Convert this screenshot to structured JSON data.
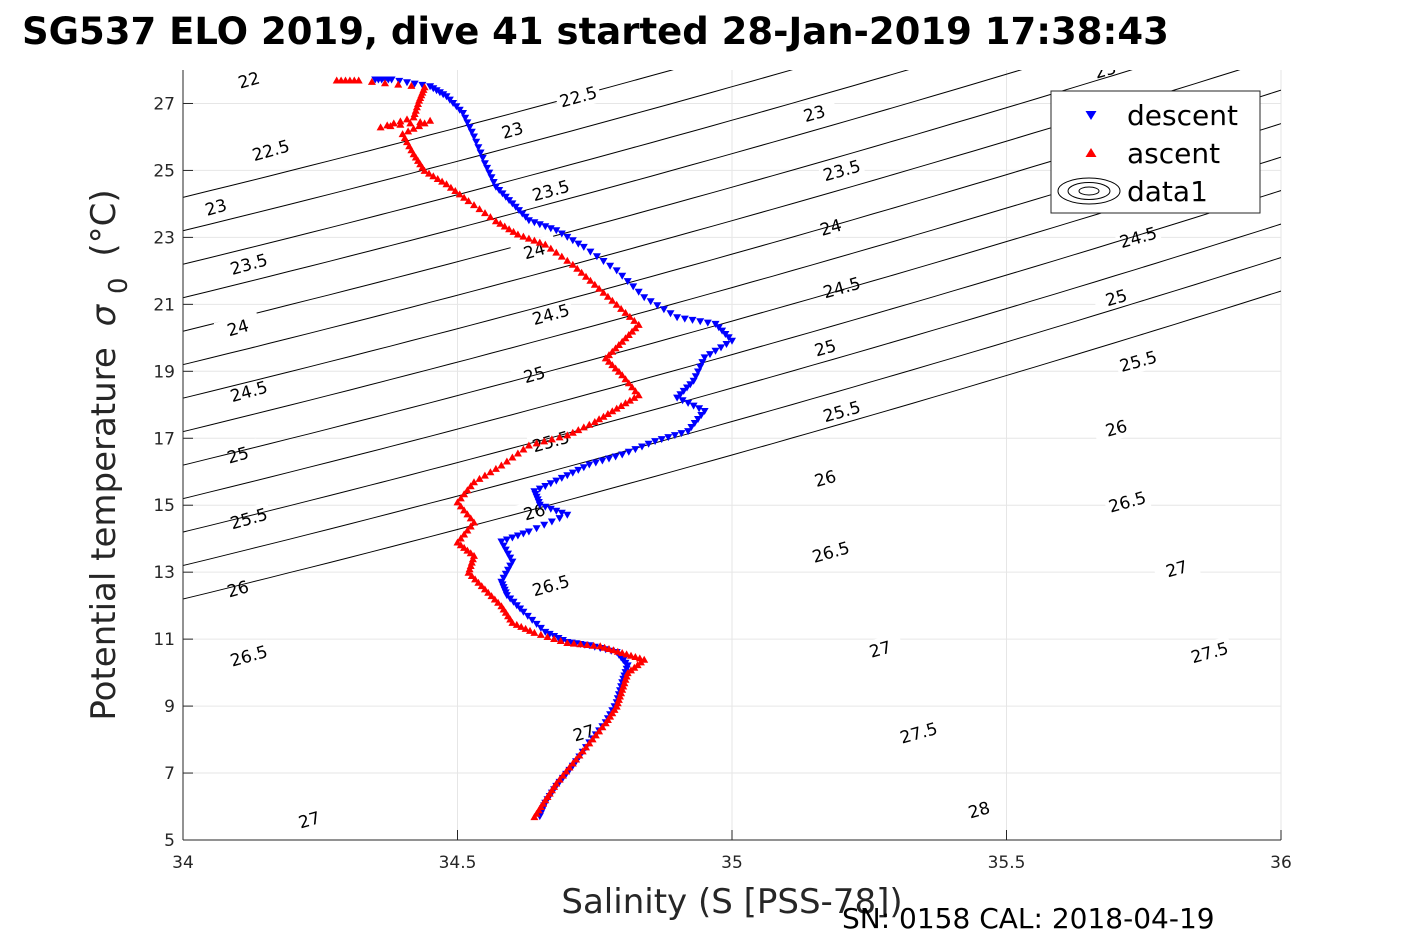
{
  "chart_data": {
    "type": "scatter",
    "title": "SG537 ELO 2019, dive 41 started 28-Jan-2019 17:38:43",
    "xlabel": "Salinity (S [PSS-78])",
    "ylabel": "Potential temperature",
    "ylabel_symbol": "σ",
    "ylabel_sub": "0",
    "ylabel_unit": "(°C)",
    "xlim": [
      34,
      36
    ],
    "ylim": [
      5,
      28
    ],
    "xticks": [
      34,
      34.5,
      35,
      35.5,
      36
    ],
    "xtick_labels": [
      "34",
      "34.5",
      "35",
      "35.5",
      "36"
    ],
    "yticks": [
      5,
      7,
      9,
      11,
      13,
      15,
      17,
      19,
      21,
      23,
      25,
      27
    ],
    "ytick_labels": [
      "5",
      "7",
      "9",
      "11",
      "13",
      "15",
      "17",
      "19",
      "21",
      "23",
      "25",
      "27"
    ],
    "grid": true,
    "legend_position": "top-right",
    "series": [
      {
        "name": "descent",
        "marker": "down-triangle",
        "color": "#0000ff",
        "points": [
          [
            34.35,
            27.7
          ],
          [
            34.38,
            27.7
          ],
          [
            34.45,
            27.5
          ],
          [
            34.48,
            27.2
          ],
          [
            34.51,
            26.7
          ],
          [
            34.53,
            26.0
          ],
          [
            34.55,
            25.2
          ],
          [
            34.57,
            24.5
          ],
          [
            34.6,
            24.0
          ],
          [
            34.63,
            23.5
          ],
          [
            34.68,
            23.2
          ],
          [
            34.73,
            22.7
          ],
          [
            34.79,
            22.0
          ],
          [
            34.84,
            21.2
          ],
          [
            34.9,
            20.6
          ],
          [
            34.97,
            20.4
          ],
          [
            35.0,
            19.9
          ],
          [
            34.95,
            19.4
          ],
          [
            34.93,
            18.7
          ],
          [
            34.9,
            18.2
          ],
          [
            34.95,
            17.8
          ],
          [
            34.92,
            17.2
          ],
          [
            34.86,
            16.9
          ],
          [
            34.8,
            16.5
          ],
          [
            34.74,
            16.2
          ],
          [
            34.69,
            15.8
          ],
          [
            34.64,
            15.4
          ],
          [
            34.65,
            15.0
          ],
          [
            34.7,
            14.7
          ],
          [
            34.63,
            14.2
          ],
          [
            34.58,
            13.9
          ],
          [
            34.6,
            13.3
          ],
          [
            34.58,
            12.7
          ],
          [
            34.59,
            12.3
          ],
          [
            34.62,
            11.8
          ],
          [
            34.66,
            11.2
          ],
          [
            34.7,
            10.9
          ],
          [
            34.74,
            10.8
          ],
          [
            34.79,
            10.6
          ],
          [
            34.81,
            10.2
          ],
          [
            34.8,
            9.7
          ],
          [
            34.79,
            9.1
          ],
          [
            34.77,
            8.5
          ],
          [
            34.74,
            7.9
          ],
          [
            34.71,
            7.2
          ],
          [
            34.68,
            6.6
          ],
          [
            34.66,
            6.1
          ],
          [
            34.65,
            5.7
          ]
        ]
      },
      {
        "name": "ascent",
        "marker": "up-triangle",
        "color": "#ff0000",
        "points": [
          [
            34.28,
            27.7
          ],
          [
            34.32,
            27.7
          ],
          [
            34.44,
            27.5
          ],
          [
            34.43,
            27.1
          ],
          [
            34.42,
            26.6
          ],
          [
            34.36,
            26.3
          ],
          [
            34.45,
            26.5
          ],
          [
            34.4,
            26.1
          ],
          [
            34.42,
            25.5
          ],
          [
            34.44,
            25.0
          ],
          [
            34.48,
            24.6
          ],
          [
            34.52,
            24.1
          ],
          [
            34.57,
            23.5
          ],
          [
            34.61,
            23.1
          ],
          [
            34.66,
            22.8
          ],
          [
            34.71,
            22.2
          ],
          [
            34.75,
            21.6
          ],
          [
            34.79,
            21.0
          ],
          [
            34.83,
            20.4
          ],
          [
            34.8,
            19.9
          ],
          [
            34.77,
            19.4
          ],
          [
            34.8,
            18.9
          ],
          [
            34.83,
            18.3
          ],
          [
            34.79,
            17.9
          ],
          [
            34.75,
            17.5
          ],
          [
            34.7,
            17.1
          ],
          [
            34.63,
            16.8
          ],
          [
            34.58,
            16.2
          ],
          [
            34.53,
            15.7
          ],
          [
            34.5,
            15.1
          ],
          [
            34.53,
            14.5
          ],
          [
            34.5,
            13.9
          ],
          [
            34.53,
            13.5
          ],
          [
            34.52,
            13.0
          ],
          [
            34.55,
            12.5
          ],
          [
            34.58,
            12.0
          ],
          [
            34.6,
            11.5
          ],
          [
            34.64,
            11.2
          ],
          [
            34.7,
            10.9
          ],
          [
            34.76,
            10.8
          ],
          [
            34.8,
            10.6
          ],
          [
            34.84,
            10.4
          ],
          [
            34.81,
            10.0
          ],
          [
            34.8,
            9.5
          ],
          [
            34.79,
            9.0
          ],
          [
            34.77,
            8.5
          ],
          [
            34.74,
            7.9
          ],
          [
            34.71,
            7.3
          ],
          [
            34.68,
            6.7
          ],
          [
            34.66,
            6.2
          ],
          [
            34.64,
            5.7
          ]
        ]
      }
    ],
    "contours": [
      {
        "level": "22",
        "m": 4.6,
        "b": -132.5,
        "labels": [
          [
            34.12,
            27.7
          ]
        ]
      },
      {
        "level": "22.5",
        "m": 4.6,
        "b": -133.5,
        "labels": [
          [
            34.16,
            25.6
          ],
          [
            34.72,
            27.2
          ]
        ]
      },
      {
        "level": "23",
        "m": 4.6,
        "b": -134.5,
        "labels": [
          [
            34.06,
            23.9
          ],
          [
            34.6,
            26.2
          ],
          [
            35.15,
            26.7
          ],
          [
            35.68,
            28.0
          ]
        ]
      },
      {
        "level": "23.5",
        "m": 4.6,
        "b": -135.5,
        "labels": [
          [
            34.12,
            22.2
          ],
          [
            34.67,
            24.4
          ],
          [
            35.2,
            25.0
          ]
        ]
      },
      {
        "level": "24",
        "m": 4.6,
        "b": -136.5,
        "labels": [
          [
            34.1,
            20.3
          ],
          [
            34.64,
            22.6
          ],
          [
            35.18,
            23.3
          ]
        ]
      },
      {
        "level": "24.5",
        "m": 4.6,
        "b": -137.5,
        "labels": [
          [
            34.12,
            18.4
          ],
          [
            34.67,
            20.7
          ],
          [
            35.2,
            21.5
          ],
          [
            35.74,
            23.0
          ]
        ]
      },
      {
        "level": "25",
        "m": 4.6,
        "b": -138.5,
        "labels": [
          [
            34.1,
            16.5
          ],
          [
            34.64,
            18.9
          ],
          [
            35.17,
            19.7
          ],
          [
            35.7,
            21.2
          ]
        ]
      },
      {
        "level": "25.5",
        "m": 4.6,
        "b": -139.5,
        "labels": [
          [
            34.12,
            14.6
          ],
          [
            34.67,
            16.9
          ],
          [
            35.2,
            17.8
          ],
          [
            35.74,
            19.3
          ]
        ]
      },
      {
        "level": "26",
        "m": 4.6,
        "b": -140.5,
        "labels": [
          [
            34.1,
            12.5
          ],
          [
            34.64,
            14.8
          ],
          [
            35.17,
            15.8
          ],
          [
            35.7,
            17.3
          ]
        ]
      },
      {
        "level": "26.5",
        "m": 4.6,
        "b": -141.5,
        "labels": [
          [
            34.12,
            10.5
          ],
          [
            34.67,
            12.6
          ],
          [
            35.18,
            13.6
          ],
          [
            35.72,
            15.1
          ]
        ]
      },
      {
        "level": "27",
        "m": 4.6,
        "b": -142.5,
        "labels": [
          [
            34.23,
            5.6
          ],
          [
            34.73,
            8.2
          ],
          [
            35.27,
            10.7
          ],
          [
            35.81,
            13.1
          ]
        ]
      },
      {
        "level": "27.5",
        "m": 4.6,
        "b": -143.5,
        "labels": [
          [
            35.34,
            8.2
          ],
          [
            35.87,
            10.6
          ]
        ]
      },
      {
        "level": "28",
        "m": 4.6,
        "b": -144.5,
        "labels": [
          [
            35.45,
            5.9
          ]
        ]
      }
    ],
    "legend": {
      "entries": [
        "descent",
        "ascent",
        "data1"
      ]
    }
  },
  "footer": {
    "text": "SN: 0158  CAL: 2018-04-19"
  },
  "colors": {
    "descent": "#0000ff",
    "ascent": "#ff0000",
    "grid": "#e6e6e6",
    "axis": "#262626",
    "contour": "#000000"
  }
}
